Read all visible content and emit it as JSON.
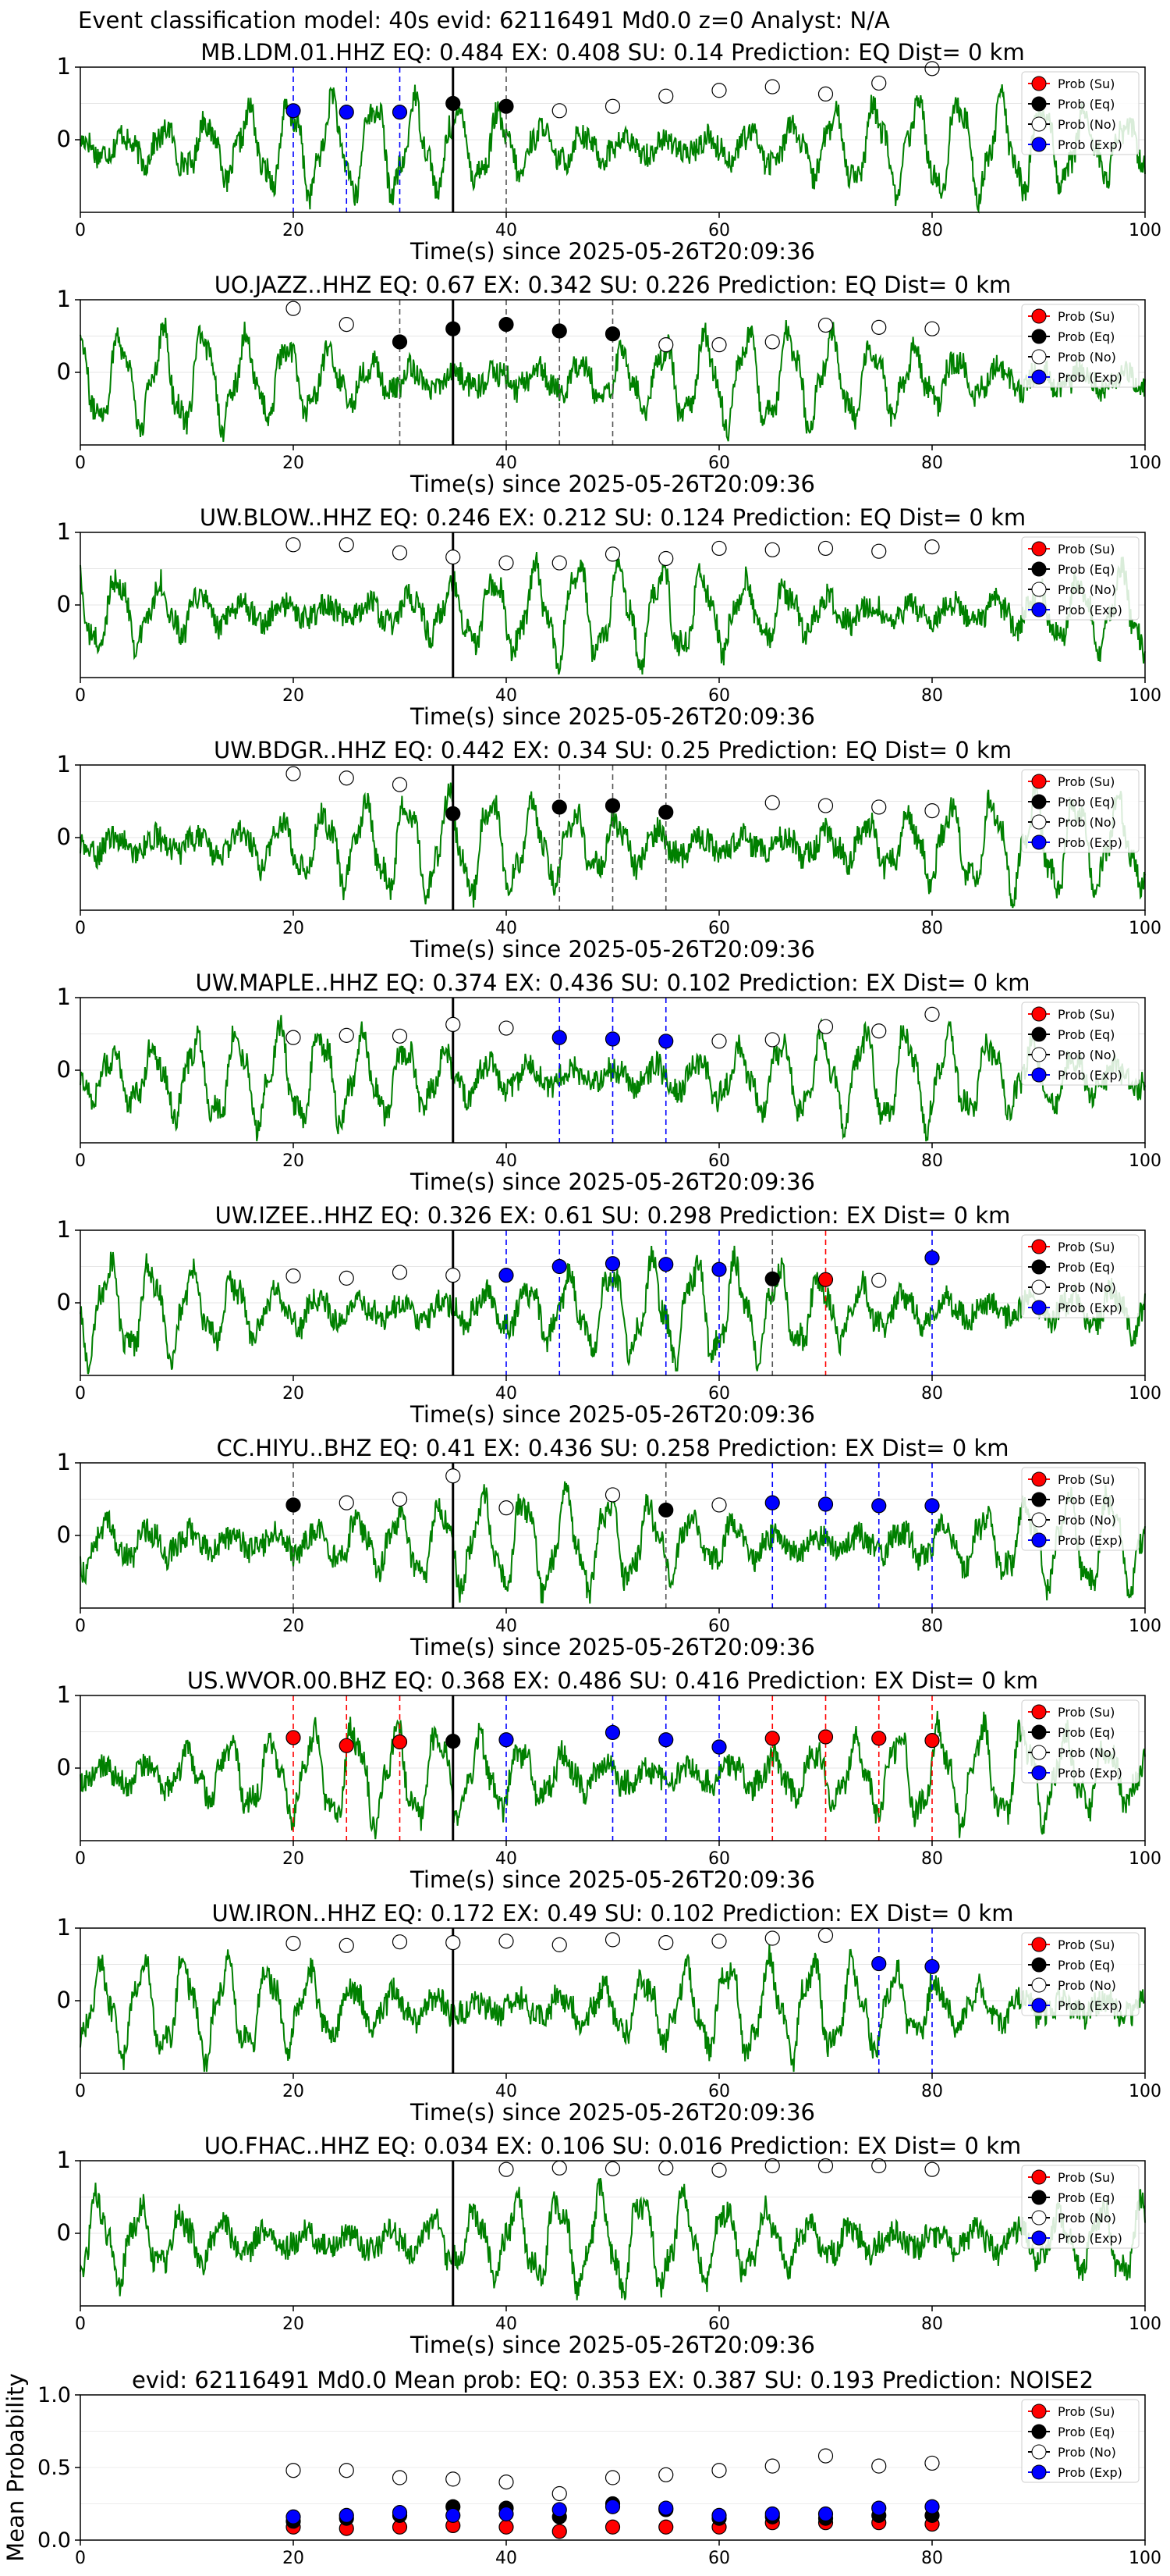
{
  "figure": {
    "suptitle": "Event classification model: 40s evid: 62116491 Md0.0 z=0 Analyst: N/A",
    "legend_labels": [
      "Prob (Su)",
      "Prob (Eq)",
      "Prob (No)",
      "Prob (Exp)"
    ],
    "xlabel": "Time(s) since 2025-05-26T20:09:36",
    "x_ticks": [
      "0",
      "20",
      "40",
      "60",
      "80",
      "100"
    ],
    "wave_y_ticks": [
      "1",
      "0"
    ],
    "colors": {
      "waveform": "#008000",
      "su": "#ff0000",
      "eq": "#000000",
      "no": "#ffffff",
      "exp": "#0000ff",
      "pick_line": "#000000"
    }
  },
  "chart_data": [
    {
      "type": "line",
      "title": "MB.LDM.01.HHZ   EQ: 0.484  EX: 0.408  SU: 0.14   Prediction: EQ    Dist= 0 km",
      "xlim": [
        0,
        100
      ],
      "ylim": [
        -1,
        1
      ],
      "pick_time": 35,
      "points": [
        {
          "x": 20,
          "y": 0.4,
          "cls": "exp"
        },
        {
          "x": 25,
          "y": 0.38,
          "cls": "exp"
        },
        {
          "x": 30,
          "y": 0.38,
          "cls": "exp"
        },
        {
          "x": 35,
          "y": 0.5,
          "cls": "eq"
        },
        {
          "x": 40,
          "y": 0.46,
          "cls": "eq"
        },
        {
          "x": 45,
          "y": 0.4,
          "cls": "no"
        },
        {
          "x": 50,
          "y": 0.46,
          "cls": "no"
        },
        {
          "x": 55,
          "y": 0.6,
          "cls": "no"
        },
        {
          "x": 60,
          "y": 0.68,
          "cls": "no"
        },
        {
          "x": 65,
          "y": 0.73,
          "cls": "no"
        },
        {
          "x": 70,
          "y": 0.63,
          "cls": "no"
        },
        {
          "x": 75,
          "y": 0.78,
          "cls": "no"
        },
        {
          "x": 80,
          "y": 0.98,
          "cls": "no"
        }
      ],
      "vlines": [
        {
          "x": 20,
          "cls": "exp"
        },
        {
          "x": 25,
          "cls": "exp"
        },
        {
          "x": 30,
          "cls": "exp"
        },
        {
          "x": 40,
          "cls": "eq"
        }
      ]
    },
    {
      "type": "line",
      "title": "UO.JAZZ..HHZ   EQ: 0.67  EX: 0.342  SU: 0.226   Prediction: EQ    Dist= 0 km",
      "xlim": [
        0,
        100
      ],
      "ylim": [
        -1,
        1
      ],
      "pick_time": 35,
      "points": [
        {
          "x": 20,
          "y": 0.88,
          "cls": "no"
        },
        {
          "x": 25,
          "y": 0.66,
          "cls": "no"
        },
        {
          "x": 30,
          "y": 0.42,
          "cls": "eq"
        },
        {
          "x": 35,
          "y": 0.6,
          "cls": "eq"
        },
        {
          "x": 40,
          "y": 0.66,
          "cls": "eq"
        },
        {
          "x": 45,
          "y": 0.57,
          "cls": "eq"
        },
        {
          "x": 50,
          "y": 0.53,
          "cls": "eq"
        },
        {
          "x": 55,
          "y": 0.38,
          "cls": "no"
        },
        {
          "x": 60,
          "y": 0.38,
          "cls": "no"
        },
        {
          "x": 65,
          "y": 0.42,
          "cls": "no"
        },
        {
          "x": 70,
          "y": 0.65,
          "cls": "no"
        },
        {
          "x": 75,
          "y": 0.62,
          "cls": "no"
        },
        {
          "x": 80,
          "y": 0.6,
          "cls": "no"
        }
      ],
      "vlines": [
        {
          "x": 30,
          "cls": "eq"
        },
        {
          "x": 40,
          "cls": "eq"
        },
        {
          "x": 45,
          "cls": "eq"
        },
        {
          "x": 50,
          "cls": "eq"
        }
      ]
    },
    {
      "type": "line",
      "title": "UW.BLOW..HHZ   EQ: 0.246  EX: 0.212  SU: 0.124   Prediction: EQ    Dist= 0 km",
      "xlim": [
        0,
        100
      ],
      "ylim": [
        -1,
        1
      ],
      "pick_time": 35,
      "points": [
        {
          "x": 20,
          "y": 0.83,
          "cls": "no"
        },
        {
          "x": 25,
          "y": 0.83,
          "cls": "no"
        },
        {
          "x": 30,
          "y": 0.72,
          "cls": "no"
        },
        {
          "x": 35,
          "y": 0.66,
          "cls": "no"
        },
        {
          "x": 40,
          "y": 0.58,
          "cls": "no"
        },
        {
          "x": 45,
          "y": 0.58,
          "cls": "no"
        },
        {
          "x": 50,
          "y": 0.7,
          "cls": "no"
        },
        {
          "x": 55,
          "y": 0.64,
          "cls": "no"
        },
        {
          "x": 60,
          "y": 0.78,
          "cls": "no"
        },
        {
          "x": 65,
          "y": 0.76,
          "cls": "no"
        },
        {
          "x": 70,
          "y": 0.78,
          "cls": "no"
        },
        {
          "x": 75,
          "y": 0.74,
          "cls": "no"
        },
        {
          "x": 80,
          "y": 0.8,
          "cls": "no"
        }
      ],
      "vlines": []
    },
    {
      "type": "line",
      "title": "UW.BDGR..HHZ   EQ: 0.442  EX: 0.34  SU: 0.25   Prediction: EQ    Dist= 0 km",
      "xlim": [
        0,
        100
      ],
      "ylim": [
        -1,
        1
      ],
      "pick_time": 35,
      "points": [
        {
          "x": 20,
          "y": 0.88,
          "cls": "no"
        },
        {
          "x": 25,
          "y": 0.82,
          "cls": "no"
        },
        {
          "x": 30,
          "y": 0.73,
          "cls": "no"
        },
        {
          "x": 35,
          "y": 0.33,
          "cls": "eq"
        },
        {
          "x": 45,
          "y": 0.42,
          "cls": "eq"
        },
        {
          "x": 50,
          "y": 0.44,
          "cls": "eq"
        },
        {
          "x": 55,
          "y": 0.35,
          "cls": "eq"
        },
        {
          "x": 65,
          "y": 0.48,
          "cls": "no"
        },
        {
          "x": 70,
          "y": 0.44,
          "cls": "no"
        },
        {
          "x": 75,
          "y": 0.42,
          "cls": "no"
        },
        {
          "x": 80,
          "y": 0.37,
          "cls": "no"
        }
      ],
      "vlines": [
        {
          "x": 45,
          "cls": "eq"
        },
        {
          "x": 50,
          "cls": "eq"
        },
        {
          "x": 55,
          "cls": "eq"
        }
      ]
    },
    {
      "type": "line",
      "title": "UW.MAPLE..HHZ   EQ: 0.374  EX: 0.436  SU: 0.102   Prediction: EX    Dist= 0 km",
      "xlim": [
        0,
        100
      ],
      "ylim": [
        -1,
        1
      ],
      "pick_time": 35,
      "points": [
        {
          "x": 20,
          "y": 0.45,
          "cls": "no"
        },
        {
          "x": 25,
          "y": 0.48,
          "cls": "no"
        },
        {
          "x": 30,
          "y": 0.47,
          "cls": "no"
        },
        {
          "x": 35,
          "y": 0.63,
          "cls": "no"
        },
        {
          "x": 40,
          "y": 0.58,
          "cls": "no"
        },
        {
          "x": 45,
          "y": 0.45,
          "cls": "exp"
        },
        {
          "x": 50,
          "y": 0.43,
          "cls": "exp"
        },
        {
          "x": 55,
          "y": 0.4,
          "cls": "exp"
        },
        {
          "x": 60,
          "y": 0.4,
          "cls": "no"
        },
        {
          "x": 65,
          "y": 0.42,
          "cls": "no"
        },
        {
          "x": 70,
          "y": 0.6,
          "cls": "no"
        },
        {
          "x": 75,
          "y": 0.54,
          "cls": "no"
        },
        {
          "x": 80,
          "y": 0.77,
          "cls": "no"
        }
      ],
      "vlines": [
        {
          "x": 45,
          "cls": "exp"
        },
        {
          "x": 50,
          "cls": "exp"
        },
        {
          "x": 55,
          "cls": "exp"
        }
      ]
    },
    {
      "type": "line",
      "title": "UW.IZEE..HHZ   EQ: 0.326  EX: 0.61  SU: 0.298   Prediction: EX    Dist= 0 km",
      "xlim": [
        0,
        100
      ],
      "ylim": [
        -1,
        1
      ],
      "pick_time": 35,
      "points": [
        {
          "x": 20,
          "y": 0.37,
          "cls": "no"
        },
        {
          "x": 25,
          "y": 0.34,
          "cls": "no"
        },
        {
          "x": 30,
          "y": 0.42,
          "cls": "no"
        },
        {
          "x": 35,
          "y": 0.38,
          "cls": "no"
        },
        {
          "x": 40,
          "y": 0.38,
          "cls": "exp"
        },
        {
          "x": 45,
          "y": 0.5,
          "cls": "exp"
        },
        {
          "x": 50,
          "y": 0.54,
          "cls": "exp"
        },
        {
          "x": 55,
          "y": 0.53,
          "cls": "exp"
        },
        {
          "x": 60,
          "y": 0.46,
          "cls": "exp"
        },
        {
          "x": 65,
          "y": 0.33,
          "cls": "eq"
        },
        {
          "x": 70,
          "y": 0.32,
          "cls": "su"
        },
        {
          "x": 75,
          "y": 0.31,
          "cls": "no"
        },
        {
          "x": 80,
          "y": 0.62,
          "cls": "exp"
        }
      ],
      "vlines": [
        {
          "x": 40,
          "cls": "exp"
        },
        {
          "x": 45,
          "cls": "exp"
        },
        {
          "x": 50,
          "cls": "exp"
        },
        {
          "x": 55,
          "cls": "exp"
        },
        {
          "x": 60,
          "cls": "exp"
        },
        {
          "x": 65,
          "cls": "eq"
        },
        {
          "x": 70,
          "cls": "su"
        },
        {
          "x": 80,
          "cls": "exp"
        }
      ]
    },
    {
      "type": "line",
      "title": "CC.HIYU..BHZ   EQ: 0.41  EX: 0.436  SU: 0.258   Prediction: EX    Dist= 0 km",
      "xlim": [
        0,
        100
      ],
      "ylim": [
        -1,
        1
      ],
      "pick_time": 35,
      "points": [
        {
          "x": 20,
          "y": 0.42,
          "cls": "eq"
        },
        {
          "x": 25,
          "y": 0.45,
          "cls": "no"
        },
        {
          "x": 30,
          "y": 0.5,
          "cls": "no"
        },
        {
          "x": 35,
          "y": 0.82,
          "cls": "no"
        },
        {
          "x": 40,
          "y": 0.38,
          "cls": "no"
        },
        {
          "x": 50,
          "y": 0.56,
          "cls": "no"
        },
        {
          "x": 55,
          "y": 0.35,
          "cls": "eq"
        },
        {
          "x": 60,
          "y": 0.42,
          "cls": "no"
        },
        {
          "x": 65,
          "y": 0.45,
          "cls": "exp"
        },
        {
          "x": 70,
          "y": 0.43,
          "cls": "exp"
        },
        {
          "x": 75,
          "y": 0.41,
          "cls": "exp"
        },
        {
          "x": 80,
          "y": 0.41,
          "cls": "exp"
        }
      ],
      "vlines": [
        {
          "x": 20,
          "cls": "eq"
        },
        {
          "x": 55,
          "cls": "eq"
        },
        {
          "x": 65,
          "cls": "exp"
        },
        {
          "x": 70,
          "cls": "exp"
        },
        {
          "x": 75,
          "cls": "exp"
        },
        {
          "x": 80,
          "cls": "exp"
        }
      ]
    },
    {
      "type": "line",
      "title": "US.WVOR.00.BHZ   EQ: 0.368  EX: 0.486  SU: 0.416   Prediction: EX    Dist= 0 km",
      "xlim": [
        0,
        100
      ],
      "ylim": [
        -1,
        1
      ],
      "pick_time": 35,
      "points": [
        {
          "x": 20,
          "y": 0.42,
          "cls": "su"
        },
        {
          "x": 25,
          "y": 0.31,
          "cls": "su"
        },
        {
          "x": 30,
          "y": 0.36,
          "cls": "su"
        },
        {
          "x": 35,
          "y": 0.37,
          "cls": "eq"
        },
        {
          "x": 40,
          "y": 0.39,
          "cls": "exp"
        },
        {
          "x": 50,
          "y": 0.49,
          "cls": "exp"
        },
        {
          "x": 55,
          "y": 0.39,
          "cls": "exp"
        },
        {
          "x": 60,
          "y": 0.29,
          "cls": "exp"
        },
        {
          "x": 65,
          "y": 0.41,
          "cls": "su"
        },
        {
          "x": 70,
          "y": 0.43,
          "cls": "su"
        },
        {
          "x": 75,
          "y": 0.41,
          "cls": "su"
        },
        {
          "x": 80,
          "y": 0.38,
          "cls": "su"
        }
      ],
      "vlines": [
        {
          "x": 20,
          "cls": "su"
        },
        {
          "x": 25,
          "cls": "su"
        },
        {
          "x": 30,
          "cls": "su"
        },
        {
          "x": 40,
          "cls": "exp"
        },
        {
          "x": 50,
          "cls": "exp"
        },
        {
          "x": 55,
          "cls": "exp"
        },
        {
          "x": 60,
          "cls": "exp"
        },
        {
          "x": 65,
          "cls": "su"
        },
        {
          "x": 70,
          "cls": "su"
        },
        {
          "x": 75,
          "cls": "su"
        },
        {
          "x": 80,
          "cls": "su"
        }
      ]
    },
    {
      "type": "line",
      "title": "UW.IRON..HHZ   EQ: 0.172  EX: 0.49  SU: 0.102   Prediction: EX    Dist= 0 km",
      "xlim": [
        0,
        100
      ],
      "ylim": [
        -1,
        1
      ],
      "pick_time": 35,
      "points": [
        {
          "x": 20,
          "y": 0.79,
          "cls": "no"
        },
        {
          "x": 25,
          "y": 0.76,
          "cls": "no"
        },
        {
          "x": 30,
          "y": 0.81,
          "cls": "no"
        },
        {
          "x": 35,
          "y": 0.8,
          "cls": "no"
        },
        {
          "x": 40,
          "y": 0.82,
          "cls": "no"
        },
        {
          "x": 45,
          "y": 0.77,
          "cls": "no"
        },
        {
          "x": 50,
          "y": 0.84,
          "cls": "no"
        },
        {
          "x": 55,
          "y": 0.8,
          "cls": "no"
        },
        {
          "x": 60,
          "y": 0.82,
          "cls": "no"
        },
        {
          "x": 65,
          "y": 0.86,
          "cls": "no"
        },
        {
          "x": 70,
          "y": 0.9,
          "cls": "no"
        },
        {
          "x": 75,
          "y": 0.51,
          "cls": "exp"
        },
        {
          "x": 80,
          "y": 0.47,
          "cls": "exp"
        }
      ],
      "vlines": [
        {
          "x": 75,
          "cls": "exp"
        },
        {
          "x": 80,
          "cls": "exp"
        }
      ]
    },
    {
      "type": "line",
      "title": "UO.FHAC..HHZ   EQ: 0.034  EX: 0.106  SU: 0.016   Prediction: EX    Dist= 0 km",
      "xlim": [
        0,
        100
      ],
      "ylim": [
        -1,
        1
      ],
      "pick_time": 35,
      "points": [
        {
          "x": 40,
          "y": 0.88,
          "cls": "no"
        },
        {
          "x": 45,
          "y": 0.9,
          "cls": "no"
        },
        {
          "x": 50,
          "y": 0.89,
          "cls": "no"
        },
        {
          "x": 55,
          "y": 0.9,
          "cls": "no"
        },
        {
          "x": 60,
          "y": 0.87,
          "cls": "no"
        },
        {
          "x": 65,
          "y": 0.93,
          "cls": "no"
        },
        {
          "x": 70,
          "y": 0.93,
          "cls": "no"
        },
        {
          "x": 75,
          "y": 0.93,
          "cls": "no"
        },
        {
          "x": 80,
          "y": 0.88,
          "cls": "no"
        }
      ],
      "vlines": []
    },
    {
      "type": "scatter",
      "title": "evid: 62116491  Md0.0   Mean prob:   EQ: 0.353  EX: 0.387  SU: 0.193   Prediction: NOISE2",
      "ylabel": "Mean Probability",
      "xlim": [
        0,
        100
      ],
      "ylim": [
        0,
        1
      ],
      "y_ticks": [
        "1.0",
        "0.5",
        "0.0"
      ],
      "x": [
        20,
        25,
        30,
        35,
        40,
        45,
        50,
        55,
        60,
        65,
        70,
        75,
        80
      ],
      "series": [
        {
          "name": "Prob (Su)",
          "cls": "su",
          "values": [
            0.09,
            0.08,
            0.09,
            0.1,
            0.09,
            0.06,
            0.09,
            0.09,
            0.09,
            0.12,
            0.12,
            0.12,
            0.11
          ]
        },
        {
          "name": "Prob (Eq)",
          "cls": "eq",
          "values": [
            0.13,
            0.15,
            0.17,
            0.23,
            0.22,
            0.16,
            0.25,
            0.21,
            0.15,
            0.16,
            0.15,
            0.17,
            0.17
          ]
        },
        {
          "name": "Prob (No)",
          "cls": "no",
          "values": [
            0.48,
            0.48,
            0.43,
            0.42,
            0.4,
            0.32,
            0.43,
            0.45,
            0.48,
            0.51,
            0.58,
            0.51,
            0.53
          ]
        },
        {
          "name": "Prob (Exp)",
          "cls": "exp",
          "values": [
            0.16,
            0.17,
            0.19,
            0.17,
            0.18,
            0.21,
            0.23,
            0.22,
            0.17,
            0.18,
            0.18,
            0.22,
            0.23
          ]
        }
      ]
    }
  ]
}
